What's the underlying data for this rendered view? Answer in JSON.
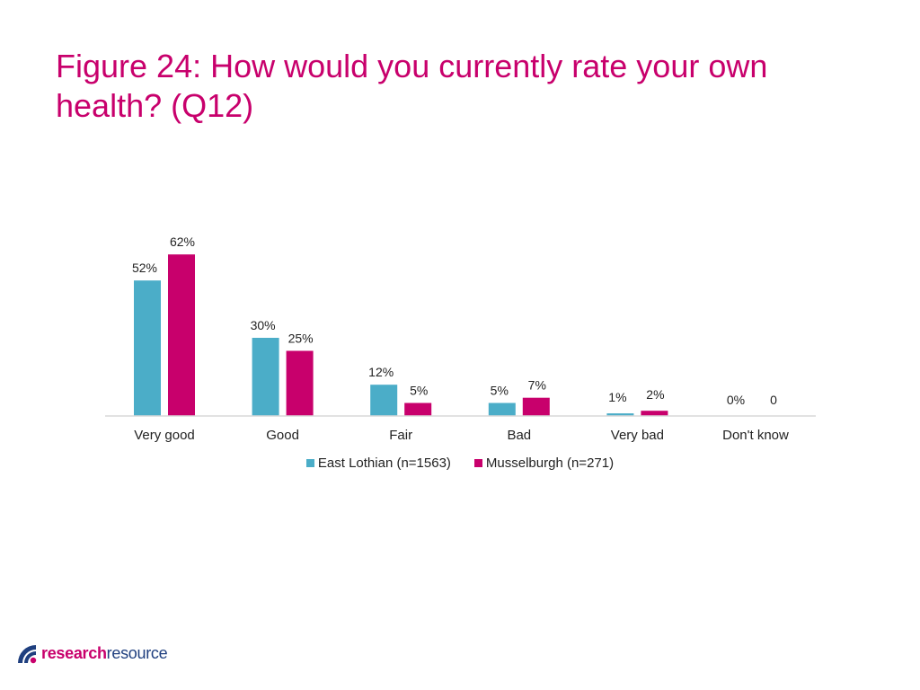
{
  "title": "Figure 24: How would you currently rate your own health? (Q12)",
  "colors": {
    "title": "#C8006C",
    "east_lothian": "#4BADC8",
    "musselburgh": "#C8006C",
    "axis": "#D9D9D9",
    "logo_arc": "#1F3F7F"
  },
  "chart_data": {
    "type": "bar",
    "title": "",
    "xlabel": "",
    "ylabel": "",
    "ylim": [
      0,
      70
    ],
    "grid": false,
    "legend_position": "bottom",
    "categories": [
      "Very good",
      "Good",
      "Fair",
      "Bad",
      "Very bad",
      "Don't know"
    ],
    "series": [
      {
        "name": "East Lothian (n=1563)",
        "color": "#4BADC8",
        "values": [
          52,
          30,
          12,
          5,
          1,
          0
        ],
        "labels": [
          "52%",
          "30%",
          "12%",
          "5%",
          "1%",
          "0%"
        ]
      },
      {
        "name": "Musselburgh (n=271)",
        "color": "#C8006C",
        "values": [
          62,
          25,
          5,
          7,
          2,
          0
        ],
        "labels": [
          "62%",
          "25%",
          "5%",
          "7%",
          "2%",
          "0"
        ]
      }
    ]
  },
  "logo": {
    "word_bold": "research",
    "word_regular": "resource"
  }
}
